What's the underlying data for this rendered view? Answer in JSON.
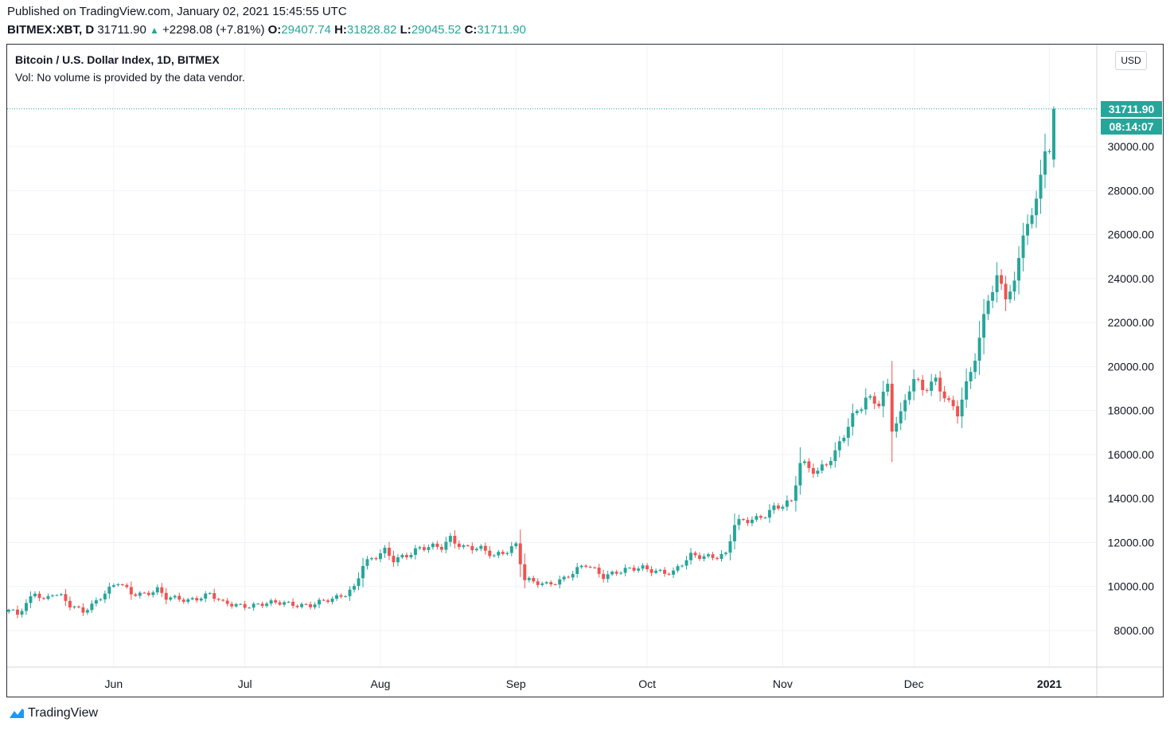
{
  "header": {
    "published": "Published on TradingView.com, January 02, 2021 15:45:55 UTC",
    "symbol": "BITMEX:XBT, D",
    "last": "31711.90",
    "change": "+2298.08 (+7.81%)",
    "o_label": "O:",
    "o_value": "29407.74",
    "h_label": "H:",
    "h_value": "31828.82",
    "l_label": "L:",
    "l_value": "29045.52",
    "c_label": "C:",
    "c_value": "31711.90"
  },
  "legend": {
    "title": "Bitcoin / U.S. Dollar Index, 1D, BITMEX",
    "vol": "Vol: No volume is provided by the data vendor."
  },
  "currency": "USD",
  "last_price_tag": "31711.90",
  "countdown_tag": "08:14:07",
  "branding": "TradingView",
  "colors": {
    "up": "#26a69a",
    "down": "#ef5350"
  },
  "chart_data": {
    "type": "candlestick",
    "x_labels": [
      "Jun",
      "Jul",
      "Aug",
      "Sep",
      "Oct",
      "Nov",
      "Dec",
      "2021"
    ],
    "y_ticks": [
      "8000.00",
      "10000.00",
      "12000.00",
      "14000.00",
      "16000.00",
      "18000.00",
      "20000.00",
      "22000.00",
      "24000.00",
      "26000.00",
      "28000.00",
      "30000.00"
    ],
    "ylim": [
      7000,
      34500
    ],
    "grid": true,
    "start_date": "2020-05-08",
    "end_date": "2021-01-02",
    "close_anchors": [
      [
        "2020-05-08",
        8900
      ],
      [
        "2020-05-10",
        8700
      ],
      [
        "2020-05-12",
        9200
      ],
      [
        "2020-05-14",
        9800
      ],
      [
        "2020-05-16",
        9400
      ],
      [
        "2020-05-18",
        9700
      ],
      [
        "2020-05-20",
        9500
      ],
      [
        "2020-05-22",
        9100
      ],
      [
        "2020-05-25",
        8900
      ],
      [
        "2020-05-27",
        9200
      ],
      [
        "2020-05-30",
        9700
      ],
      [
        "2020-06-02",
        10150
      ],
      [
        "2020-06-05",
        9700
      ],
      [
        "2020-06-08",
        9700
      ],
      [
        "2020-06-11",
        9850
      ],
      [
        "2020-06-13",
        9450
      ],
      [
        "2020-06-18",
        9400
      ],
      [
        "2020-06-23",
        9650
      ],
      [
        "2020-06-26",
        9200
      ],
      [
        "2020-07-01",
        9150
      ],
      [
        "2020-07-10",
        9250
      ],
      [
        "2020-07-16",
        9150
      ],
      [
        "2020-07-21",
        9400
      ],
      [
        "2020-07-24",
        9700
      ],
      [
        "2020-07-26",
        10000
      ],
      [
        "2020-07-28",
        11000
      ],
      [
        "2020-07-31",
        11300
      ],
      [
        "2020-08-02",
        11600
      ],
      [
        "2020-08-04",
        11250
      ],
      [
        "2020-08-10",
        11700
      ],
      [
        "2020-08-15",
        11800
      ],
      [
        "2020-08-17",
        12250
      ],
      [
        "2020-08-20",
        11800
      ],
      [
        "2020-08-24",
        11650
      ],
      [
        "2020-08-27",
        11400
      ],
      [
        "2020-09-01",
        11900
      ],
      [
        "2020-09-03",
        10300
      ],
      [
        "2020-09-05",
        10150
      ],
      [
        "2020-09-08",
        10100
      ],
      [
        "2020-09-12",
        10400
      ],
      [
        "2020-09-17",
        10950
      ],
      [
        "2020-09-21",
        10500
      ],
      [
        "2020-09-24",
        10700
      ],
      [
        "2020-09-30",
        10800
      ],
      [
        "2020-10-07",
        10650
      ],
      [
        "2020-10-11",
        11350
      ],
      [
        "2020-10-15",
        11400
      ],
      [
        "2020-10-19",
        11450
      ],
      [
        "2020-10-21",
        12800
      ],
      [
        "2020-10-26",
        13100
      ],
      [
        "2020-10-30",
        13600
      ],
      [
        "2020-11-03",
        13750
      ],
      [
        "2020-11-05",
        15600
      ],
      [
        "2020-11-09",
        15300
      ],
      [
        "2020-11-13",
        16000
      ],
      [
        "2020-11-17",
        17650
      ],
      [
        "2020-11-20",
        18650
      ],
      [
        "2020-11-23",
        18400
      ],
      [
        "2020-11-25",
        19000
      ],
      [
        "2020-11-26",
        17100
      ],
      [
        "2020-11-28",
        17700
      ],
      [
        "2020-11-30",
        19100
      ],
      [
        "2020-12-01",
        19500
      ],
      [
        "2020-12-03",
        19100
      ],
      [
        "2020-12-06",
        19300
      ],
      [
        "2020-12-09",
        18200
      ],
      [
        "2020-12-11",
        17900
      ],
      [
        "2020-12-13",
        19200
      ],
      [
        "2020-12-16",
        21300
      ],
      [
        "2020-12-18",
        23100
      ],
      [
        "2020-12-20",
        23800
      ],
      [
        "2020-12-22",
        23200
      ],
      [
        "2020-12-24",
        23700
      ],
      [
        "2020-12-26",
        26400
      ],
      [
        "2020-12-28",
        26700
      ],
      [
        "2020-12-30",
        28900
      ],
      [
        "2020-12-31",
        29407.74
      ],
      [
        "2021-01-01",
        29407.74
      ],
      [
        "2021-01-02",
        31711.9
      ]
    ],
    "last_candle": {
      "date": "2021-01-02",
      "open": 29407.74,
      "high": 31828.82,
      "low": 29045.52,
      "close": 31711.9
    }
  }
}
